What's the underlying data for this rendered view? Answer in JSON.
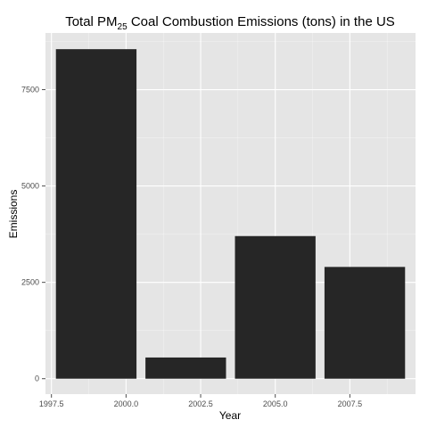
{
  "chart_data": {
    "type": "bar",
    "title_prefix": "Total PM",
    "title_sub": "25",
    "title_suffix": " Coal Combustion Emissions (tons) in the US",
    "xlabel": "Year",
    "ylabel": "Emissions",
    "x": [
      1999,
      2002,
      2005,
      2008
    ],
    "values": [
      8550,
      550,
      3700,
      2900
    ],
    "bar_width": 2.7,
    "xlim": [
      1997.3,
      2009.7
    ],
    "ylim": [
      -400,
      8970
    ],
    "x_ticks": [
      1997.5,
      2000.0,
      2002.5,
      2005.0,
      2007.5
    ],
    "x_tick_labels": [
      "1997.5",
      "2000.0",
      "2002.5",
      "2005.0",
      "2007.5"
    ],
    "y_ticks": [
      0,
      2500,
      5000,
      7500
    ],
    "y_tick_labels": [
      "0",
      "2500",
      "5000",
      "7500"
    ],
    "grid": true,
    "colors": {
      "panel": "#e5e5e5",
      "grid": "#ffffff",
      "bar": "#262626",
      "tick": "#4d4d4d"
    }
  }
}
